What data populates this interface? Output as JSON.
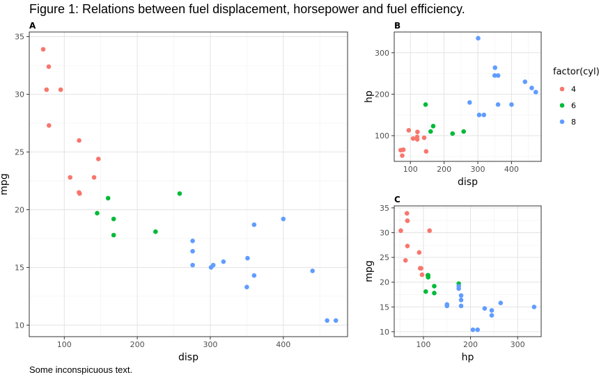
{
  "figure": {
    "title": "Figure 1: Relations between fuel displacement, horsepower and fuel efficiency.",
    "caption": "Some inconspicuous text."
  },
  "legend": {
    "title": "factor(cyl)",
    "entries": [
      {
        "label": "4",
        "color": "#F8766D"
      },
      {
        "label": "6",
        "color": "#00BA38"
      },
      {
        "label": "8",
        "color": "#619CFF"
      }
    ]
  },
  "chart_data": [
    {
      "panel": "A",
      "type": "scatter",
      "xlabel": "disp",
      "ylabel": "mpg",
      "xlim": [
        52,
        488
      ],
      "ylim": [
        9,
        35.4
      ],
      "xticks": [
        100,
        200,
        300,
        400
      ],
      "yticks": [
        10,
        15,
        20,
        25,
        30,
        35
      ],
      "grid": true,
      "series": [
        {
          "name": "4",
          "x": [
            71.1,
            78.7,
            75.7,
            95.1,
            79,
            120.3,
            146.7,
            108,
            140.8,
            120.1,
            121
          ],
          "y": [
            33.9,
            32.4,
            30.4,
            30.4,
            27.3,
            26.0,
            24.4,
            22.8,
            22.8,
            21.5,
            21.4
          ]
        },
        {
          "name": "6",
          "x": [
            258,
            160,
            145,
            167.6,
            167.6,
            225
          ],
          "y": [
            21.4,
            21.0,
            19.7,
            19.2,
            17.8,
            18.1
          ]
        },
        {
          "name": "8",
          "x": [
            400,
            360,
            275.8,
            275.8,
            351,
            304,
            318,
            301,
            275.8,
            350,
            440,
            360,
            460,
            472
          ],
          "y": [
            19.2,
            18.7,
            17.3,
            16.4,
            15.8,
            15.2,
            15.5,
            15.0,
            15.2,
            13.3,
            14.7,
            14.3,
            10.4,
            10.4
          ]
        }
      ]
    },
    {
      "panel": "B",
      "type": "scatter",
      "xlabel": "disp",
      "ylabel": "hp",
      "xlim": [
        52,
        488
      ],
      "ylim": [
        38,
        350
      ],
      "xticks": [
        100,
        200,
        300,
        400
      ],
      "yticks": [
        100,
        200,
        300
      ],
      "grid": true,
      "series": [
        {
          "name": "4",
          "x": [
            71.1,
            78.7,
            75.7,
            79,
            95.1,
            108,
            120.3,
            120.1,
            121,
            140.8,
            146.7
          ],
          "y": [
            65,
            66,
            52,
            66,
            113,
            93,
            91,
            97,
            109,
            95,
            62
          ]
        },
        {
          "name": "6",
          "x": [
            145,
            160,
            167.6,
            225,
            258
          ],
          "y": [
            175,
            110,
            123,
            105,
            110
          ]
        },
        {
          "name": "8",
          "x": [
            301,
            275.8,
            304,
            318,
            350,
            351,
            360,
            360,
            400,
            440,
            460,
            472
          ],
          "y": [
            335,
            180,
            150,
            150,
            245,
            264,
            245,
            175,
            175,
            230,
            215,
            205
          ]
        }
      ]
    },
    {
      "panel": "C",
      "type": "scatter",
      "xlabel": "hp",
      "ylabel": "mpg",
      "xlim": [
        38,
        350
      ],
      "ylim": [
        9,
        35.4
      ],
      "xticks": [
        100,
        200,
        300
      ],
      "yticks": [
        10,
        15,
        20,
        25,
        30,
        35
      ],
      "grid": true,
      "series": [
        {
          "name": "4",
          "x": [
            52,
            65,
            66,
            66,
            62,
            91,
            93,
            95,
            97,
            109,
            113,
            66
          ],
          "y": [
            30.4,
            33.9,
            32.4,
            27.3,
            24.4,
            26.0,
            22.8,
            22.8,
            21.5,
            21.4,
            30.4,
            32.4
          ]
        },
        {
          "name": "6",
          "x": [
            105,
            110,
            110,
            123,
            123,
            175
          ],
          "y": [
            18.1,
            21.0,
            21.4,
            19.2,
            17.8,
            19.7
          ]
        },
        {
          "name": "8",
          "x": [
            150,
            150,
            175,
            175,
            180,
            180,
            180,
            205,
            215,
            230,
            245,
            245,
            264,
            335
          ],
          "y": [
            15.5,
            15.2,
            18.7,
            19.2,
            16.4,
            17.3,
            15.2,
            10.4,
            10.4,
            14.7,
            13.3,
            14.3,
            15.8,
            15.0
          ]
        }
      ]
    }
  ]
}
